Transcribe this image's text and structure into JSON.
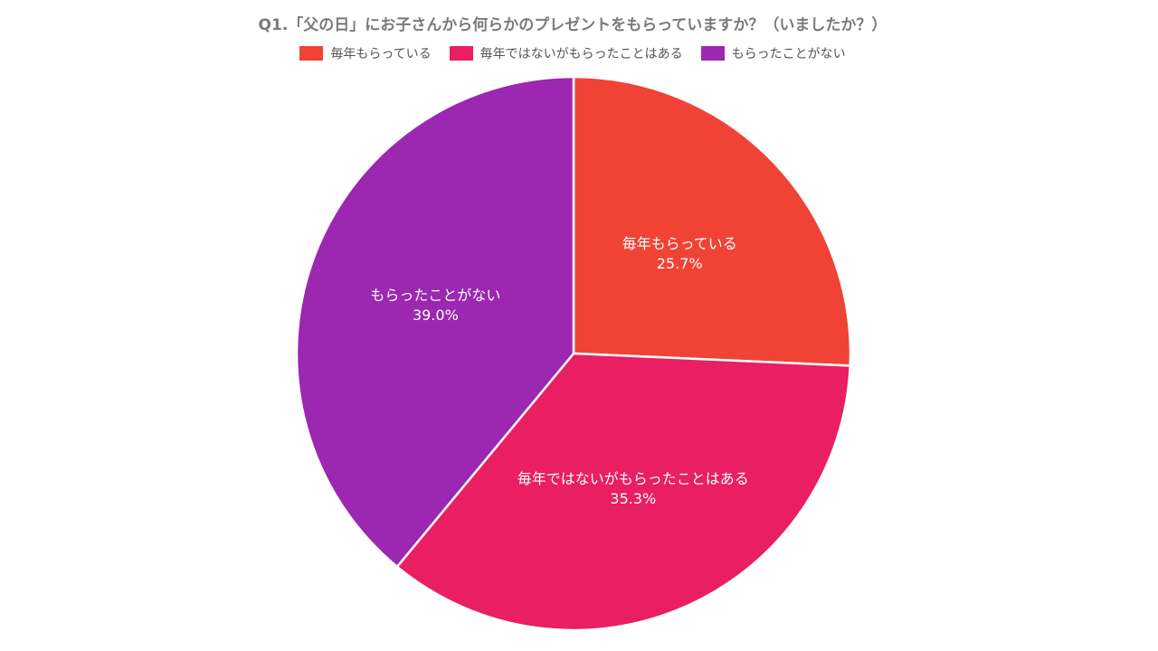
{
  "chart_data": {
    "type": "pie",
    "title": "Q1.「父の日」にお子さんから何らかのプレゼントをもらっていますか？（いましたか？）",
    "legend_position": "top",
    "categories": [
      "毎年もらっている",
      "毎年ではないがもらったことはある",
      "もらったことがない"
    ],
    "values": [
      25.7,
      35.3,
      39.0
    ],
    "value_labels": [
      "25.7%",
      "35.3%",
      "39.0%"
    ],
    "colors": [
      "#F04335",
      "#E91E63",
      "#9C27B0"
    ]
  }
}
